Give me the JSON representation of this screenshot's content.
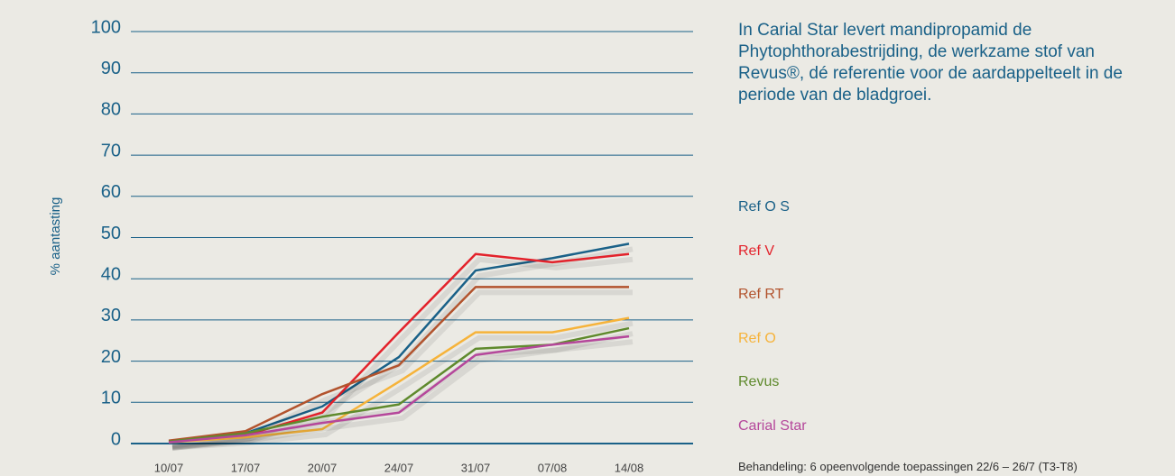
{
  "chart_data": {
    "type": "line",
    "ylabel": "% aantasting",
    "description": "In Carial Star levert mandipropamid de Phytophthorabestrijding, de werkzame stof van Revus®, dé referentie voor de aardappelteelt in de periode van de bladgroei.",
    "note": "Behandeling: 6 opeenvolgende toepassingen 22/6 – 26/7 (T3-T8)",
    "categories": [
      "10/07",
      "17/07",
      "20/07",
      "24/07",
      "31/07",
      "07/08",
      "14/08"
    ],
    "ylim": [
      0,
      100
    ],
    "yticks": [
      0,
      10,
      20,
      30,
      40,
      50,
      60,
      70,
      80,
      90,
      100
    ],
    "grid": true,
    "series": [
      {
        "name": "Ref O S",
        "color": "#1a6188",
        "values": [
          0.2,
          2.5,
          9,
          21,
          42,
          45,
          48.5
        ]
      },
      {
        "name": "Ref V",
        "color": "#e3222b",
        "values": [
          0.5,
          2,
          7.5,
          27,
          46,
          44,
          46
        ]
      },
      {
        "name": "Ref RT",
        "color": "#b2532d",
        "values": [
          0.7,
          3,
          12,
          19,
          38,
          38,
          38
        ]
      },
      {
        "name": "Ref O",
        "color": "#f6b33a",
        "values": [
          0.3,
          1.5,
          3.5,
          15,
          27,
          27,
          30.5
        ]
      },
      {
        "name": "Revus",
        "color": "#5f8a2d",
        "values": [
          0.5,
          2.5,
          6.5,
          9.5,
          23,
          24,
          28
        ]
      },
      {
        "name": "Carial Star",
        "color": "#b5479b",
        "values": [
          0.3,
          2,
          5,
          7.5,
          21.5,
          24,
          26
        ]
      }
    ]
  }
}
